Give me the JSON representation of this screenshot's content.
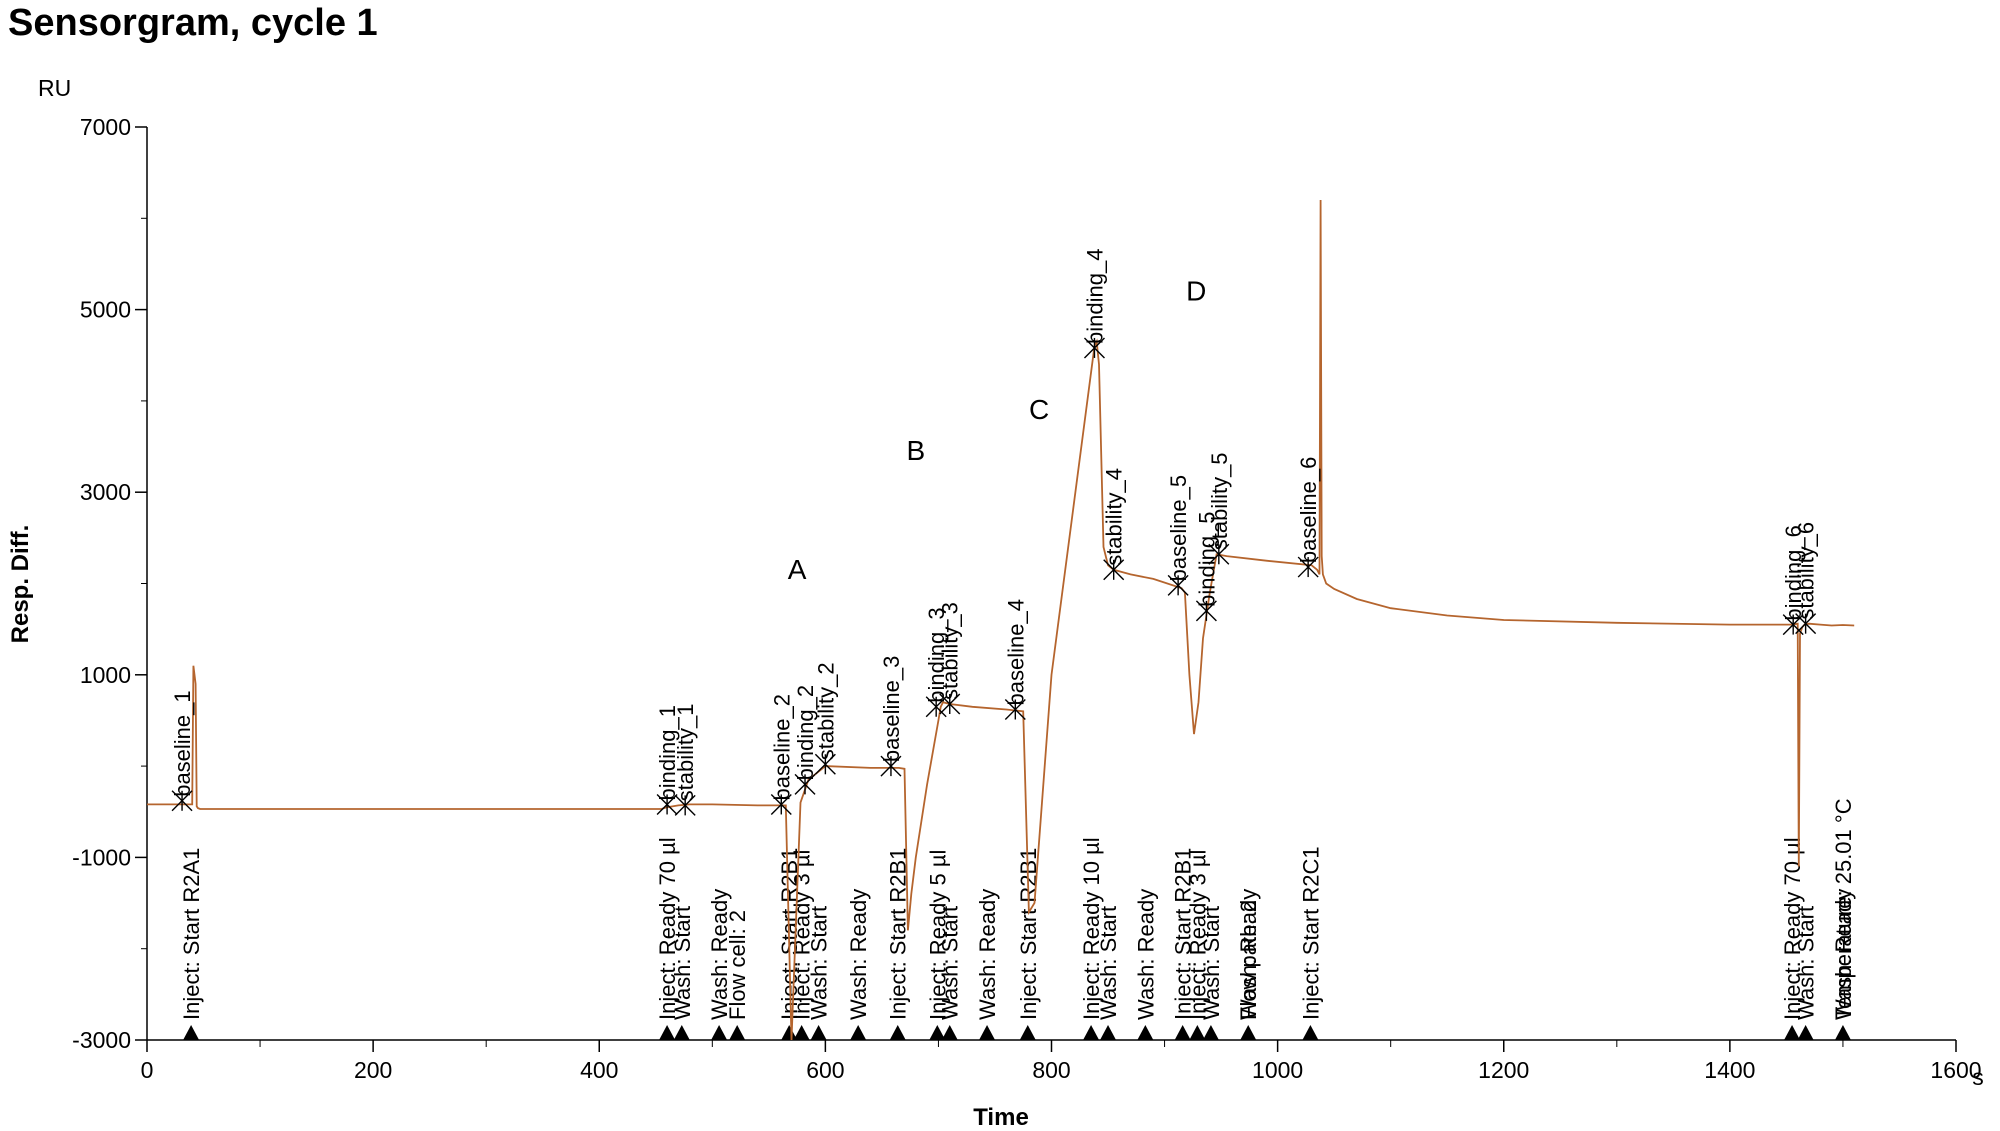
{
  "chart_data": {
    "type": "line",
    "title": "Sensorgram, cycle 1",
    "xlabel": "Time",
    "ylabel": "Resp. Diff.",
    "x_unit": "s",
    "y_unit": "RU",
    "xlim": [
      0,
      1600
    ],
    "ylim": [
      -3000,
      7000
    ],
    "xticks": [
      0,
      200,
      400,
      600,
      800,
      1000,
      1200,
      1400,
      1600
    ],
    "yticks": [
      -3000,
      -1000,
      1000,
      3000,
      5000,
      7000
    ],
    "line_color": "#b5652e",
    "series": [
      {
        "x": [
          0,
          40,
          41,
          43,
          44,
          45,
          47,
          100,
          200,
          300,
          400,
          455,
          460,
          470,
          480,
          500,
          540,
          565,
          570,
          578,
          585,
          590,
          600,
          640,
          665,
          670,
          673,
          676,
          680,
          690,
          700,
          702,
          704,
          710,
          730,
          760,
          775,
          780,
          785,
          800,
          838,
          840,
          842,
          846,
          850,
          855,
          870,
          890,
          915,
          918,
          922,
          926,
          930,
          934,
          940,
          946,
          955,
          990,
          1030,
          1035,
          1037,
          1038,
          1039,
          1040,
          1043,
          1050,
          1070,
          1100,
          1150,
          1200,
          1300,
          1400,
          1455,
          1460,
          1461,
          1462,
          1464,
          1466,
          1470,
          1480,
          1490,
          1500,
          1510
        ],
        "y": [
          -420,
          -420,
          1100,
          900,
          -440,
          -460,
          -470,
          -470,
          -470,
          -470,
          -470,
          -470,
          -450,
          -430,
          -420,
          -420,
          -430,
          -430,
          -3000,
          -400,
          -150,
          -100,
          0,
          -20,
          -20,
          -30,
          -1800,
          -1400,
          -1000,
          -200,
          500,
          650,
          700,
          680,
          650,
          620,
          600,
          -1600,
          -1500,
          1000,
          4600,
          4650,
          4400,
          2400,
          2200,
          2150,
          2100,
          2050,
          1950,
          1900,
          1000,
          350,
          700,
          1400,
          1900,
          2320,
          2300,
          2250,
          2200,
          2150,
          2100,
          6200,
          2300,
          2100,
          2000,
          1940,
          1830,
          1730,
          1650,
          1600,
          1570,
          1550,
          1550,
          1560,
          -1100,
          1450,
          1520,
          1550,
          1560,
          1550,
          1540,
          1545,
          1540
        ]
      }
    ],
    "points": [
      {
        "label": "baseline_1",
        "x": 31,
        "y": -380
      },
      {
        "label": "binding_1",
        "x": 460,
        "y": -420
      },
      {
        "label": "stability_1",
        "x": 476,
        "y": -430
      },
      {
        "label": "baseline_2",
        "x": 561,
        "y": -420
      },
      {
        "label": "binding_2",
        "x": 582,
        "y": -200
      },
      {
        "label": "stability_2",
        "x": 600,
        "y": 20
      },
      {
        "label": "baseline_3",
        "x": 658,
        "y": 0
      },
      {
        "label": "binding_3",
        "x": 698,
        "y": 650
      },
      {
        "label": "stability_3",
        "x": 710,
        "y": 680
      },
      {
        "label": "baseline_4",
        "x": 768,
        "y": 620
      },
      {
        "label": "binding_4",
        "x": 838,
        "y": 4580
      },
      {
        "label": "stability_4",
        "x": 855,
        "y": 2150
      },
      {
        "label": "baseline_5",
        "x": 912,
        "y": 1980
      },
      {
        "label": "binding_5",
        "x": 937,
        "y": 1700
      },
      {
        "label": "stability_5",
        "x": 948,
        "y": 2320
      },
      {
        "label": "baseline_6",
        "x": 1027,
        "y": 2180
      },
      {
        "label": "binding_6",
        "x": 1456,
        "y": 1550
      },
      {
        "label": "stability_6",
        "x": 1467,
        "y": 1560
      }
    ],
    "events": [
      {
        "x": 39,
        "labels": [
          "Inject: Start R2A1"
        ]
      },
      {
        "x": 460,
        "labels": [
          "Inject: Ready 70 µl"
        ]
      },
      {
        "x": 473,
        "labels": [
          "Wash: Start"
        ]
      },
      {
        "x": 506,
        "labels": [
          "Wash: Ready"
        ]
      },
      {
        "x": 522,
        "labels": [
          "Flow cell: 2"
        ]
      },
      {
        "x": 568,
        "labels": [
          "Inject: Start R2B1"
        ]
      },
      {
        "x": 579,
        "labels": [
          "Inject: Ready 3 µl"
        ]
      },
      {
        "x": 594,
        "labels": [
          "Wash: Start"
        ]
      },
      {
        "x": 629,
        "labels": [
          "Wash: Ready"
        ]
      },
      {
        "x": 664,
        "labels": [
          "Inject: Start R2B1"
        ]
      },
      {
        "x": 699,
        "labels": [
          "Inject: Ready 5 µl"
        ]
      },
      {
        "x": 710,
        "labels": [
          "Wash: Start"
        ]
      },
      {
        "x": 743,
        "labels": [
          "Wash: Ready"
        ]
      },
      {
        "x": 779,
        "labels": [
          "Inject: Start R2B1"
        ]
      },
      {
        "x": 835,
        "labels": [
          "Inject: Ready 10 µl"
        ]
      },
      {
        "x": 850,
        "labels": [
          "Wash: Start"
        ]
      },
      {
        "x": 883,
        "labels": [
          "Wash: Ready"
        ]
      },
      {
        "x": 916,
        "labels": [
          "Inject: Start R2B1"
        ]
      },
      {
        "x": 929,
        "labels": [
          "Inject: Ready 3 µl"
        ]
      },
      {
        "x": 941,
        "labels": [
          "Wash: Start"
        ]
      },
      {
        "x": 974,
        "labels": [
          "Wash: Ready",
          "Flow path: 2"
        ]
      },
      {
        "x": 1029,
        "labels": [
          "Inject: Start R2C1"
        ]
      },
      {
        "x": 1455,
        "labels": [
          "Inject: Ready 70 µl"
        ]
      },
      {
        "x": 1467,
        "labels": [
          "Wash: Start"
        ]
      },
      {
        "x": 1500,
        "labels": [
          "Wash: Ready",
          "Temperature: 25.01 °C"
        ]
      }
    ],
    "regions": [
      {
        "label": "A",
        "x": 575,
        "y": 2050
      },
      {
        "label": "B",
        "x": 680,
        "y": 3350
      },
      {
        "label": "C",
        "x": 789,
        "y": 3800
      },
      {
        "label": "D",
        "x": 928,
        "y": 5100
      }
    ]
  }
}
